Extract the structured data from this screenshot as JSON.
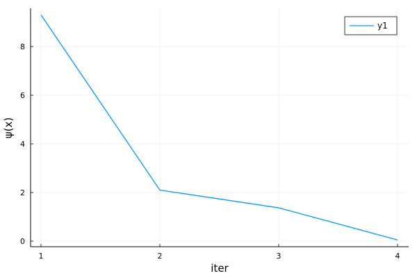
{
  "chart_data": {
    "type": "line",
    "title": "",
    "xlabel": "iter",
    "ylabel": "ψ(x)",
    "xlim": [
      1,
      4
    ],
    "ylim": [
      0,
      9.3
    ],
    "xticks": [
      1,
      2,
      3,
      4
    ],
    "yticks": [
      0,
      2,
      4,
      6,
      8
    ],
    "grid": true,
    "legend": {
      "position": "top-right"
    },
    "series": [
      {
        "name": "y1",
        "color": "#009AFA",
        "x": [
          1,
          2,
          3,
          4
        ],
        "y": [
          9.3,
          2.1,
          1.37,
          0.05
        ]
      }
    ]
  }
}
